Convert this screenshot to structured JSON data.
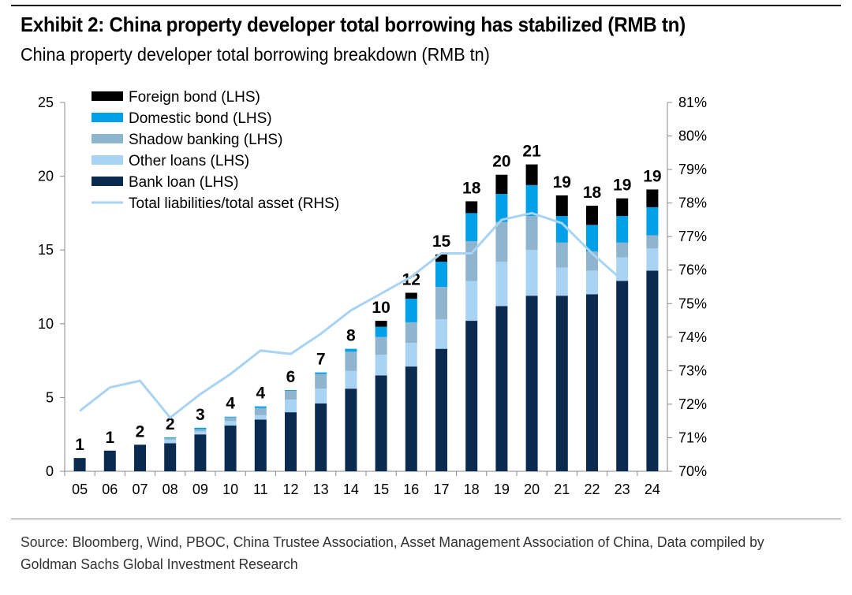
{
  "header": {
    "title": "Exhibit 2: China property developer total borrowing has stabilized (RMB tn)",
    "subtitle": "China property developer total borrowing breakdown (RMB tn)"
  },
  "footer": {
    "source": "Source: Bloomberg, Wind, PBOC, China Trustee Association, Asset Management Association of China, Data compiled by Goldman Sachs Global Investment Research"
  },
  "chart_data": {
    "type": "bar",
    "stacked": true,
    "categories": [
      "05",
      "06",
      "07",
      "08",
      "09",
      "10",
      "11",
      "12",
      "13",
      "14",
      "15",
      "16",
      "17",
      "18",
      "19",
      "20",
      "21",
      "22",
      "23",
      "24"
    ],
    "series": [
      {
        "name": "Bank loan (LHS)",
        "color": "#0b2a4f",
        "values": [
          0.9,
          1.4,
          1.8,
          1.9,
          2.5,
          3.1,
          3.5,
          4.0,
          4.6,
          5.6,
          6.5,
          7.1,
          8.3,
          10.2,
          11.2,
          11.9,
          11.9,
          12.0,
          12.9,
          13.6
        ]
      },
      {
        "name": "Other loans (LHS)",
        "color": "#a8d3f2",
        "values": [
          0.0,
          0.0,
          0.0,
          0.25,
          0.2,
          0.3,
          0.3,
          0.85,
          1.0,
          1.2,
          1.4,
          1.6,
          2.0,
          2.7,
          3.0,
          3.1,
          1.9,
          1.6,
          1.6,
          1.5
        ]
      },
      {
        "name": "Shadow banking (LHS)",
        "color": "#8fb4cd",
        "values": [
          0.0,
          0.0,
          0.0,
          0.1,
          0.15,
          0.25,
          0.5,
          0.6,
          1.0,
          1.3,
          1.2,
          1.4,
          2.2,
          2.7,
          2.7,
          2.3,
          1.7,
          1.3,
          1.0,
          0.9
        ]
      },
      {
        "name": "Domestic bond (LHS)",
        "color": "#00a0e9",
        "values": [
          0.0,
          0.0,
          0.0,
          0.05,
          0.1,
          0.05,
          0.1,
          0.05,
          0.1,
          0.2,
          0.7,
          1.6,
          1.7,
          1.9,
          1.9,
          2.1,
          1.8,
          1.8,
          1.8,
          1.9
        ]
      },
      {
        "name": "Foreign bond (LHS)",
        "color": "#000000",
        "values": [
          0.0,
          0.0,
          0.0,
          0.0,
          0.0,
          0.0,
          0.0,
          0.0,
          0.0,
          0.0,
          0.4,
          0.4,
          0.5,
          0.8,
          1.3,
          1.4,
          1.4,
          1.3,
          1.2,
          1.2
        ]
      }
    ],
    "bar_labels": [
      "1",
      "1",
      "2",
      "2",
      "3",
      "4",
      "4",
      "6",
      "7",
      "8",
      "10",
      "12",
      "15",
      "18",
      "20",
      "21",
      "19",
      "18",
      "19",
      "19"
    ],
    "line_series": {
      "name": "Total liabilities/total asset (RHS)",
      "color": "#a8d3f2",
      "axis": "right",
      "values": [
        71.8,
        72.5,
        72.7,
        71.6,
        72.3,
        72.9,
        73.6,
        73.5,
        74.1,
        74.8,
        75.3,
        75.8,
        76.5,
        76.5,
        77.5,
        77.7,
        77.4,
        76.5,
        75.7,
        null
      ]
    },
    "ylim_left": [
      0,
      25
    ],
    "yticks_left": [
      "0",
      "5",
      "10",
      "15",
      "20",
      "25"
    ],
    "ylim_right": [
      70,
      81
    ],
    "yticks_right": [
      {
        "label": "70%",
        "value": 70
      },
      {
        "label": "71%",
        "value": 71
      },
      {
        "label": "72%",
        "value": 72
      },
      {
        "label": "73%",
        "value": 73
      },
      {
        "label": "74%",
        "value": 74
      },
      {
        "label": "75%",
        "value": 75
      },
      {
        "label": "76%",
        "value": 76
      },
      {
        "label": "77%",
        "value": 77
      },
      {
        "label": "78%",
        "value": 78
      },
      {
        "label": "79%",
        "value": 79
      },
      {
        "label": "80%",
        "value": 80
      },
      {
        "label": "81%",
        "value": 81
      }
    ],
    "legend": {
      "placement": "top-left",
      "entries": [
        "Foreign bond (LHS)",
        "Domestic bond (LHS)",
        "Shadow banking (LHS)",
        "Other loans (LHS)",
        "Bank loan (LHS)",
        "Total liabilities/total asset (RHS)"
      ]
    }
  }
}
